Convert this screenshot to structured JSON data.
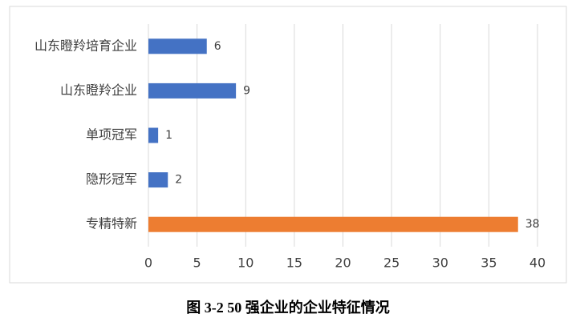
{
  "chart_data": {
    "type": "bar",
    "orientation": "horizontal",
    "title": "图 3-2 50 强企业的企业特征情况",
    "categories": [
      "山东瞪羚培育企业",
      "山东瞪羚企业",
      "单项冠军",
      "隐形冠军",
      "专精特新"
    ],
    "values": [
      6,
      9,
      1,
      2,
      38
    ],
    "colors": [
      "#4472c4",
      "#4472c4",
      "#4472c4",
      "#4472c4",
      "#ed7d31"
    ],
    "xlim": [
      0,
      40
    ],
    "xticks": [
      0,
      5,
      10,
      15,
      20,
      25,
      30,
      35,
      40
    ],
    "grid": true
  }
}
